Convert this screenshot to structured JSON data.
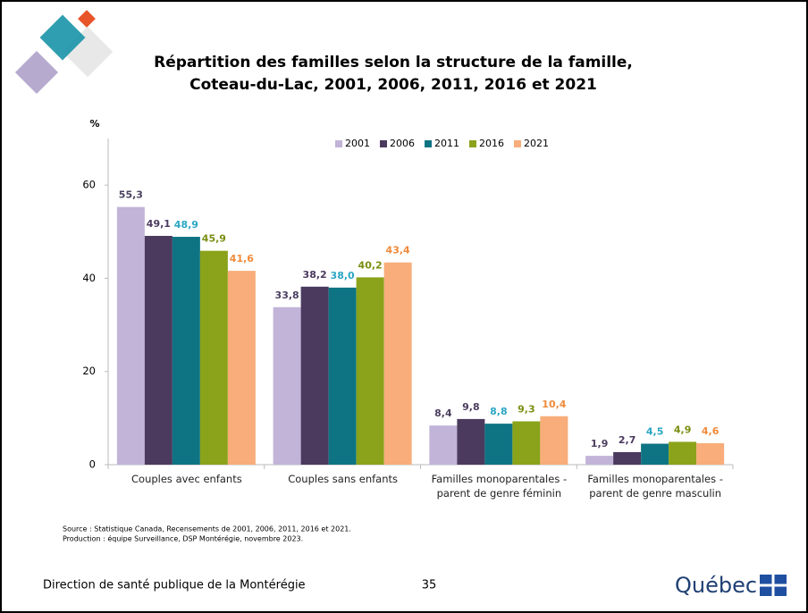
{
  "chart_data": {
    "type": "bar",
    "title": [
      "Répartition des familles selon la structure de la famille,",
      "Coteau-du-Lac, 2001, 2006, 2011, 2016 et 2021"
    ],
    "y_label": "%",
    "categories": [
      "Couples avec enfants",
      "Couples sans enfants",
      "Familles monoparentales - parent de genre féminin",
      "Familles monoparentales - parent de genre masculin"
    ],
    "series": [
      {
        "name": "2001",
        "color": "#c2b4d8",
        "label_color": "#4b3f5f",
        "values": [
          55.3,
          33.8,
          8.4,
          1.9
        ],
        "value_labels": [
          "55,3",
          "33,8",
          "8,4",
          "1,9"
        ]
      },
      {
        "name": "2006",
        "color": "#4b3a5e",
        "label_color": "#4b3a5e",
        "values": [
          49.1,
          38.2,
          9.8,
          2.7
        ],
        "value_labels": [
          "49,1",
          "38,2",
          "9,8",
          "2,7"
        ]
      },
      {
        "name": "2011",
        "color": "#0e7483",
        "label_color": "#2aa6c4",
        "values": [
          48.9,
          38.0,
          8.8,
          4.5
        ],
        "value_labels": [
          "48,9",
          "38,0",
          "8,8",
          "4,5"
        ]
      },
      {
        "name": "2016",
        "color": "#8aa31a",
        "label_color": "#7a8f12",
        "values": [
          45.9,
          40.2,
          9.3,
          4.9
        ],
        "value_labels": [
          "45,9",
          "40,2",
          "9,3",
          "4,9"
        ]
      },
      {
        "name": "2021",
        "color": "#f8ad7a",
        "label_color": "#f08a3a",
        "values": [
          41.6,
          43.4,
          10.4,
          4.6
        ],
        "value_labels": [
          "41,6",
          "43,4",
          "10,4",
          "4,6"
        ]
      }
    ],
    "ylim": [
      0,
      70
    ],
    "yticks": [
      0,
      20,
      40,
      60
    ],
    "grid": false,
    "legend": "top"
  },
  "source": [
    "Source : Statistique Canada, Recensements de 2001, 2006, 2011, 2016 et 2021.",
    "Production : équipe Surveillance, DSP Montérégie, novembre 2023."
  ],
  "footer": {
    "organization": "Direction de santé publique de la Montérégie",
    "page": "35",
    "logo": "Québec"
  }
}
